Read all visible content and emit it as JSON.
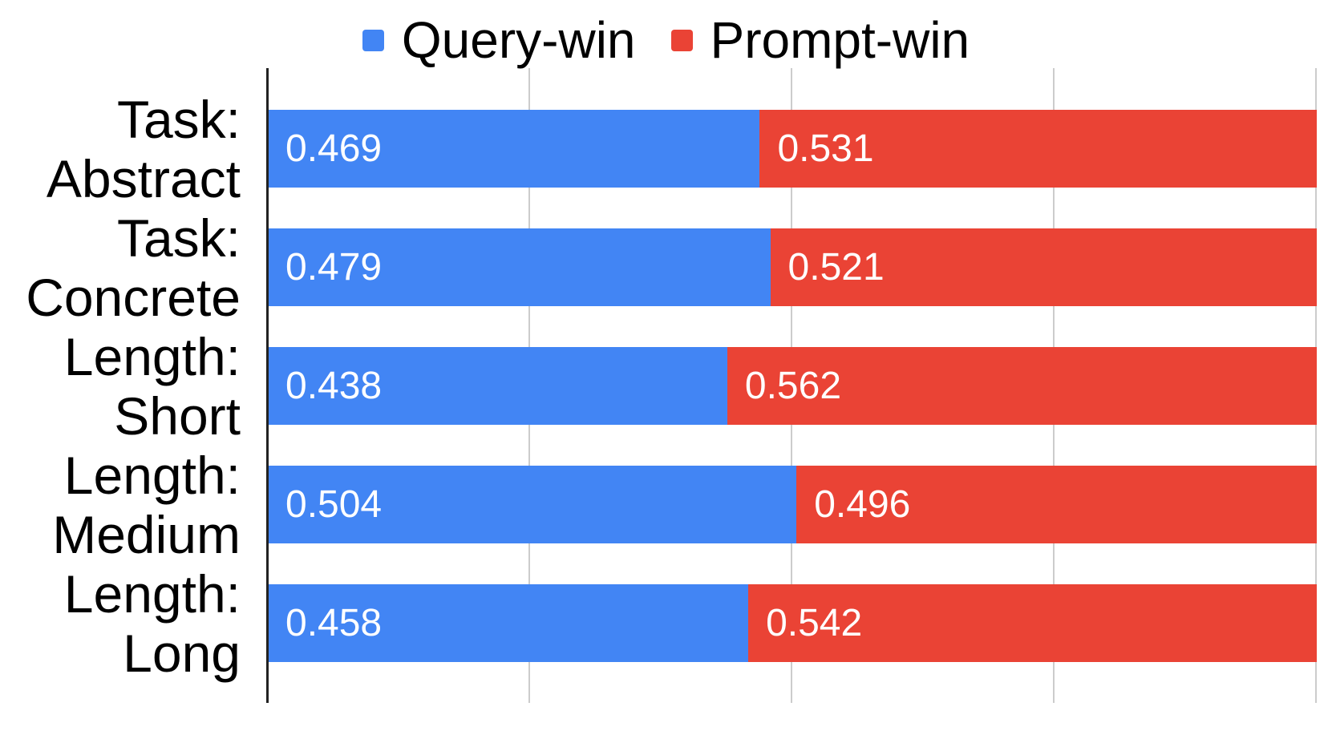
{
  "chart_data": {
    "type": "bar",
    "orientation": "horizontal",
    "stacked": true,
    "title": "",
    "xlabel": "",
    "ylabel": "",
    "xlim": [
      0,
      1
    ],
    "gridlines": [
      0.25,
      0.5,
      0.75,
      1.0
    ],
    "grid": true,
    "legend_position": "top",
    "value_labels_shown": true,
    "categories": [
      "Task: Abstract",
      "Task: Concrete",
      "Length: Short",
      "Length: Medium",
      "Length: Long"
    ],
    "category_lines": [
      [
        "Task:",
        "Abstract"
      ],
      [
        "Task:",
        "Concrete"
      ],
      [
        "Length:",
        "Short"
      ],
      [
        "Length:",
        "Medium"
      ],
      [
        "Length:",
        "Long"
      ]
    ],
    "series": [
      {
        "name": "Query-win",
        "color": "#4285F4",
        "values": [
          0.469,
          0.479,
          0.438,
          0.504,
          0.458
        ]
      },
      {
        "name": "Prompt-win",
        "color": "#EA4335",
        "values": [
          0.531,
          0.521,
          0.562,
          0.496,
          0.542
        ]
      }
    ]
  },
  "colors": {
    "query_win": "#4285F4",
    "prompt_win": "#EA4335",
    "gridline": "#cccccc",
    "axis_line": "#222222",
    "value_text": "#ffffff",
    "label_text": "#000000",
    "background": "#ffffff"
  }
}
